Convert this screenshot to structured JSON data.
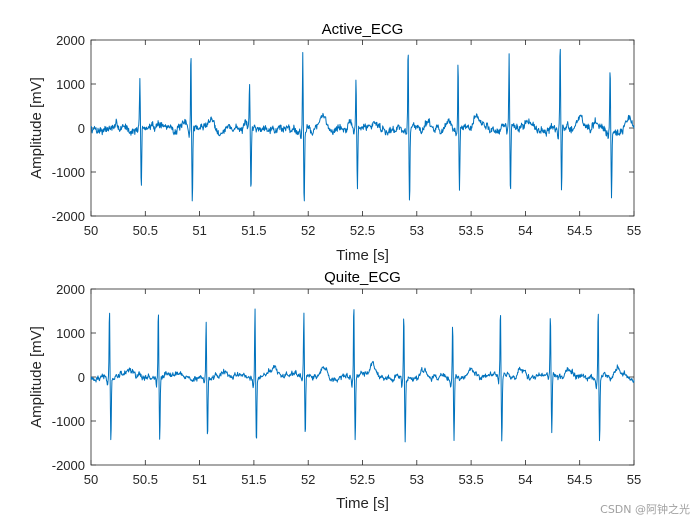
{
  "colors": {
    "line": "#0072BD",
    "axis": "#262626",
    "background": "#ffffff"
  },
  "watermark": "CSDN @阿钟之光",
  "chart_data": [
    {
      "type": "line",
      "title": "Active_ECG",
      "xlabel": "Time [s]",
      "ylabel": "Amplitude [mV]",
      "xlim": [
        50,
        55
      ],
      "ylim": [
        -2000,
        2000
      ],
      "xticks": [
        50,
        50.5,
        51,
        51.5,
        52,
        52.5,
        53,
        53.5,
        54,
        54.5,
        55
      ],
      "xtick_labels": [
        "50",
        "50.5",
        "51",
        "51.5",
        "52",
        "52.5",
        "53",
        "53.5",
        "54",
        "54.5",
        "55"
      ],
      "yticks": [
        -2000,
        -1000,
        0,
        1000,
        2000
      ],
      "ytick_labels": [
        "-2000",
        "-1000",
        "0",
        "1000",
        "2000"
      ],
      "grid": false,
      "series": [
        {
          "name": "Active_ECG",
          "baseline_noise_mV": 180,
          "beats": [
            {
              "t": 50.45,
              "peak": 1100,
              "trough": -1400
            },
            {
              "t": 50.92,
              "peak": 1750,
              "trough": -1650
            },
            {
              "t": 51.46,
              "peak": 950,
              "trough": -1450
            },
            {
              "t": 51.95,
              "peak": 1750,
              "trough": -1650
            },
            {
              "t": 52.44,
              "peak": 1050,
              "trough": -1450
            },
            {
              "t": 52.92,
              "peak": 1850,
              "trough": -1650
            },
            {
              "t": 53.38,
              "peak": 1550,
              "trough": -1500
            },
            {
              "t": 53.85,
              "peak": 1700,
              "trough": -1500
            },
            {
              "t": 54.32,
              "peak": 1950,
              "trough": -1500
            },
            {
              "t": 54.78,
              "peak": 1400,
              "trough": -1550
            }
          ]
        }
      ]
    },
    {
      "type": "line",
      "title": "Quite_ECG",
      "xlabel": "Time [s]",
      "ylabel": "Amplitude [mV]",
      "xlim": [
        50,
        55
      ],
      "ylim": [
        -2000,
        2000
      ],
      "xticks": [
        50,
        50.5,
        51,
        51.5,
        52,
        52.5,
        53,
        53.5,
        54,
        54.5,
        55
      ],
      "xtick_labels": [
        "50",
        "50.5",
        "51",
        "51.5",
        "52",
        "52.5",
        "53",
        "53.5",
        "54",
        "54.5",
        "55"
      ],
      "yticks": [
        -2000,
        -1000,
        0,
        1000,
        2000
      ],
      "ytick_labels": [
        "-2000",
        "-1000",
        "0",
        "1000",
        "2000"
      ],
      "grid": false,
      "series": [
        {
          "name": "Quite_ECG",
          "baseline_noise_mV": 130,
          "beats": [
            {
              "t": 50.17,
              "peak": 1600,
              "trough": -1500
            },
            {
              "t": 50.62,
              "peak": 1550,
              "trough": -1450
            },
            {
              "t": 51.06,
              "peak": 1300,
              "trough": -1400
            },
            {
              "t": 51.51,
              "peak": 1600,
              "trough": -1550
            },
            {
              "t": 51.96,
              "peak": 1400,
              "trough": -1400
            },
            {
              "t": 52.42,
              "peak": 1700,
              "trough": -1500
            },
            {
              "t": 52.88,
              "peak": 1550,
              "trough": -1400
            },
            {
              "t": 53.33,
              "peak": 1350,
              "trough": -1450
            },
            {
              "t": 53.77,
              "peak": 1550,
              "trough": -1500
            },
            {
              "t": 54.23,
              "peak": 1350,
              "trough": -1300
            },
            {
              "t": 54.67,
              "peak": 1600,
              "trough": -1450
            }
          ]
        }
      ]
    }
  ]
}
